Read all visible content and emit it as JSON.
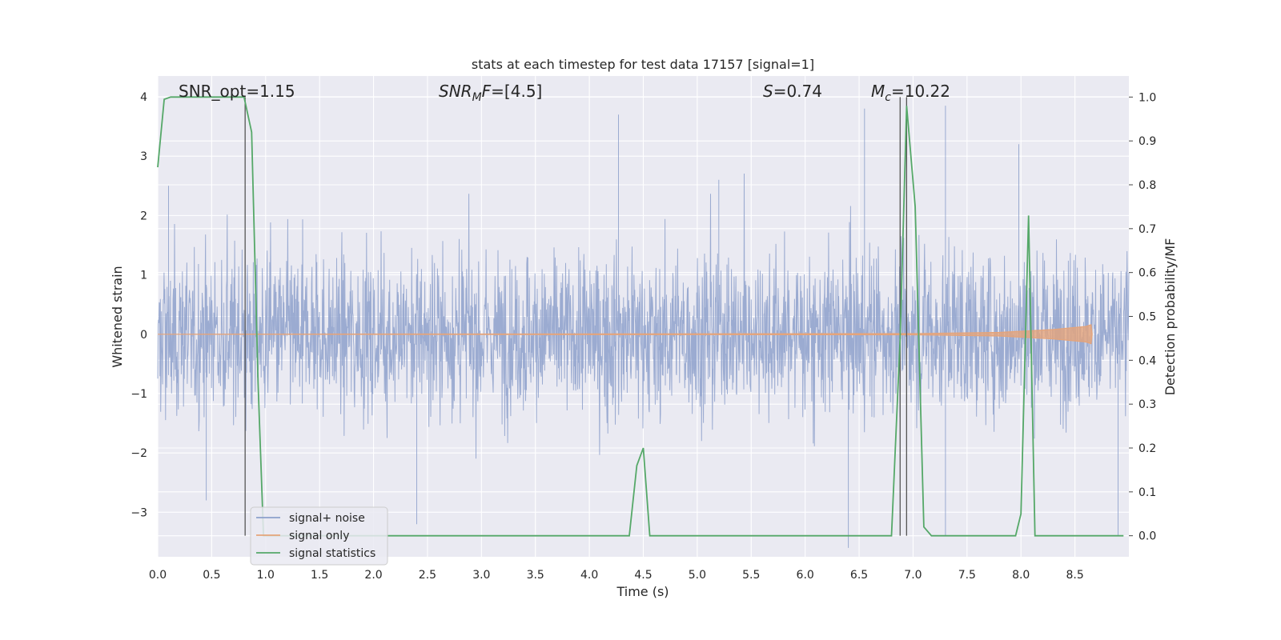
{
  "chart_data": {
    "type": "line",
    "title": "stats at each timestep for test data 17157 [signal=1]",
    "xlabel": "Time (s)",
    "ylabel": "Whitened strain",
    "y2label": "Detection probability/MF",
    "xlim": [
      0.0,
      9.0
    ],
    "ylim": [
      -3.75,
      4.35
    ],
    "y2lim": [
      -0.048,
      1.048
    ],
    "x_ticks": [
      "0.0",
      "0.5",
      "1.0",
      "1.5",
      "2.0",
      "2.5",
      "3.0",
      "3.5",
      "4.0",
      "4.5",
      "5.0",
      "5.5",
      "6.0",
      "6.5",
      "7.0",
      "7.5",
      "8.0",
      "8.5"
    ],
    "y_ticks": [
      "4",
      "3",
      "2",
      "1",
      "0",
      "−1",
      "−2",
      "−3"
    ],
    "y2_ticks": [
      "1.0",
      "0.9",
      "0.8",
      "0.7",
      "0.6",
      "0.5",
      "0.4",
      "0.3",
      "0.2",
      "0.1",
      "0.0"
    ],
    "grid": true,
    "legend_position": "lower-left",
    "annotations": {
      "snr_opt": "SNR_opt=1.15",
      "snr_mf": "=[4.5]",
      "snr_mf_base": "SNR",
      "snr_mf_sub": "M",
      "snr_mf_tail": "F",
      "s_value": "=0.74",
      "s_symbol": "S",
      "mc_value": "=10.22",
      "mc_symbol": "M",
      "mc_sub": "c"
    },
    "series": [
      {
        "name": "signal+ noise",
        "color": "#8da0cb",
        "axis": "left",
        "envelope": {
          "x": [
            0.0,
            9.0
          ],
          "y_min": -3.4,
          "y_max": 3.7
        },
        "peaks": [
          [
            0.1,
            2.5
          ],
          [
            0.45,
            -2.8
          ],
          [
            2.4,
            -3.2
          ],
          [
            4.27,
            3.7
          ],
          [
            5.2,
            2.6
          ],
          [
            6.4,
            -3.6
          ],
          [
            6.55,
            3.8
          ],
          [
            7.3,
            3.85
          ],
          [
            7.3,
            -3.4
          ],
          [
            7.98,
            3.2
          ],
          [
            8.9,
            -3.4
          ]
        ]
      },
      {
        "name": "signal only",
        "color": "#e5a47a",
        "axis": "left",
        "x": [
          0.0,
          7.0,
          7.8,
          8.3,
          8.6,
          8.65,
          8.66
        ],
        "amplitude": [
          0.0,
          0.01,
          0.03,
          0.08,
          0.13,
          0.16,
          0.0
        ]
      },
      {
        "name": "signal statistics",
        "color": "#55a868",
        "axis": "right",
        "x": [
          0.0,
          0.06,
          0.12,
          0.8,
          0.87,
          0.93,
          0.98,
          4.37,
          4.44,
          4.5,
          4.56,
          6.8,
          6.88,
          6.94,
          7.02,
          7.1,
          7.17,
          7.95,
          8.0,
          8.07,
          8.13,
          8.2,
          8.95
        ],
        "y": [
          0.84,
          0.995,
          1.0,
          1.0,
          0.92,
          0.35,
          0.0,
          0.0,
          0.16,
          0.2,
          0.0,
          0.0,
          0.45,
          0.98,
          0.75,
          0.02,
          0.0,
          0.0,
          0.05,
          0.73,
          0.0,
          0.0,
          0.0
        ]
      }
    ],
    "vertical_lines": [
      {
        "x": 0.81,
        "color": "#555555"
      },
      {
        "x": 6.88,
        "color": "#555555"
      },
      {
        "x": 6.94,
        "color": "#555555"
      }
    ]
  }
}
